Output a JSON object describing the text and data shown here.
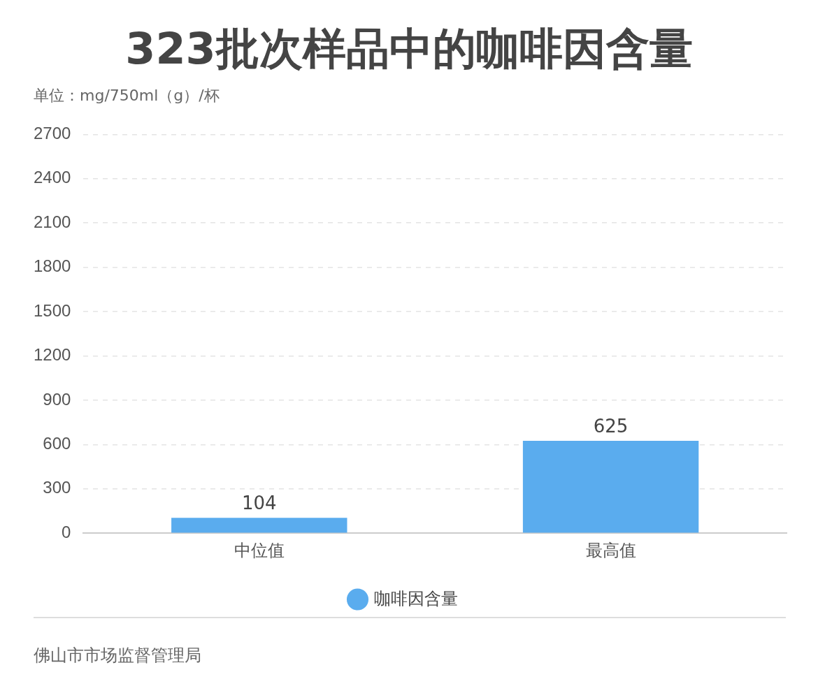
{
  "chart_data": {
    "type": "bar",
    "title": "323批次样品中的咖啡因含量",
    "ylabel": "单位：mg/750ml（g）/杯",
    "categories": [
      "中位值",
      "最高值"
    ],
    "series": [
      {
        "name": "咖啡因含量",
        "color": "#5aacee",
        "values": [
          104,
          625
        ]
      }
    ],
    "ylim": [
      0,
      2700
    ],
    "yticks": [
      0,
      300,
      600,
      900,
      1200,
      1500,
      1800,
      2100,
      2400,
      2700
    ],
    "grid": "y",
    "legend": "bottom",
    "data_labels": true,
    "annotations": [
      "佛山市市场监督管理局"
    ]
  }
}
